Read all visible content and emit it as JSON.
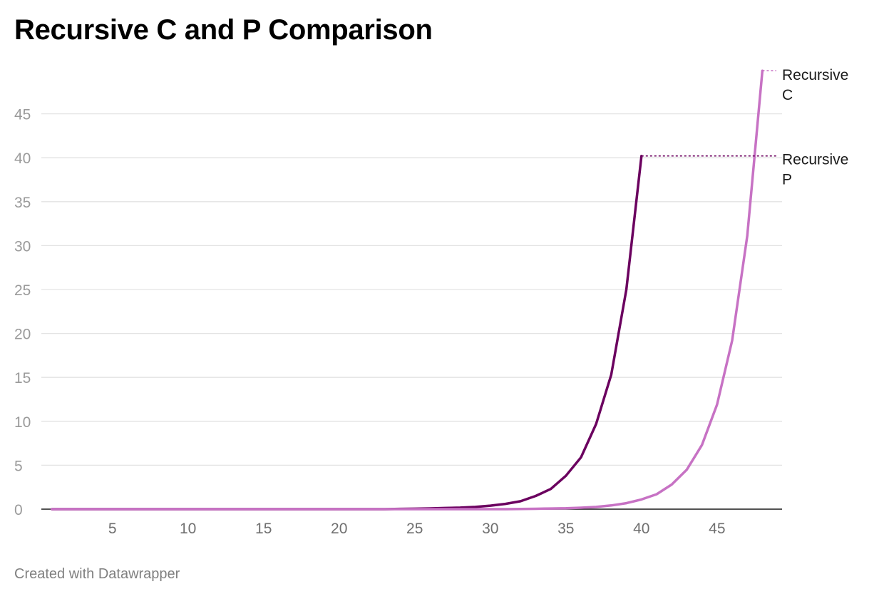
{
  "chart_data": {
    "type": "line",
    "title": "Recursive C and P Comparison",
    "xlabel": "",
    "ylabel": "",
    "xlim": [
      0.3,
      49.3
    ],
    "ylim": [
      0,
      50
    ],
    "yticks": [
      0,
      5,
      10,
      15,
      20,
      25,
      30,
      35,
      40,
      45
    ],
    "xticks": [
      5,
      10,
      15,
      20,
      25,
      30,
      35,
      40,
      45
    ],
    "grid": true,
    "legend": "right",
    "series": [
      {
        "name": "Recursive P",
        "color": "#6b005f",
        "x": [
          1,
          2,
          3,
          4,
          5,
          6,
          7,
          8,
          9,
          10,
          11,
          12,
          13,
          14,
          15,
          16,
          17,
          18,
          19,
          20,
          21,
          22,
          23,
          24,
          25,
          26,
          27,
          28,
          29,
          30,
          31,
          32,
          33,
          34,
          35,
          36,
          37,
          38,
          39,
          40
        ],
        "y": [
          0,
          0,
          0,
          0,
          0,
          0,
          0,
          0,
          0,
          0,
          0,
          0,
          0,
          0,
          0,
          0,
          0,
          0,
          0,
          0,
          0,
          0,
          0,
          0.03,
          0.05,
          0.08,
          0.13,
          0.17,
          0.25,
          0.4,
          0.6,
          0.9,
          1.5,
          2.3,
          3.8,
          5.9,
          9.7,
          15.3,
          25,
          40.2
        ]
      },
      {
        "name": "Recursive C",
        "color": "#c772c4",
        "x": [
          1,
          2,
          3,
          4,
          5,
          6,
          7,
          8,
          9,
          10,
          11,
          12,
          13,
          14,
          15,
          16,
          17,
          18,
          19,
          20,
          21,
          22,
          23,
          24,
          25,
          26,
          27,
          28,
          29,
          30,
          31,
          32,
          33,
          34,
          35,
          36,
          37,
          38,
          39,
          40,
          41,
          42,
          43,
          44,
          45,
          46,
          47,
          48
        ],
        "y": [
          0,
          0,
          0,
          0,
          0,
          0,
          0,
          0,
          0,
          0,
          0,
          0,
          0,
          0,
          0,
          0,
          0,
          0,
          0,
          0,
          0,
          0,
          0,
          0,
          0,
          0,
          0,
          0,
          0,
          0,
          0,
          0.02,
          0.04,
          0.07,
          0.1,
          0.16,
          0.25,
          0.42,
          0.68,
          1.1,
          1.7,
          2.8,
          4.5,
          7.3,
          11.9,
          19.2,
          31.1,
          49.9
        ]
      }
    ],
    "labels": [
      {
        "series": "Recursive C",
        "lines": [
          "Recursive",
          "C"
        ]
      },
      {
        "series": "Recursive P",
        "lines": [
          "Recursive",
          "P"
        ]
      }
    ]
  },
  "footer": "Created with Datawrapper"
}
